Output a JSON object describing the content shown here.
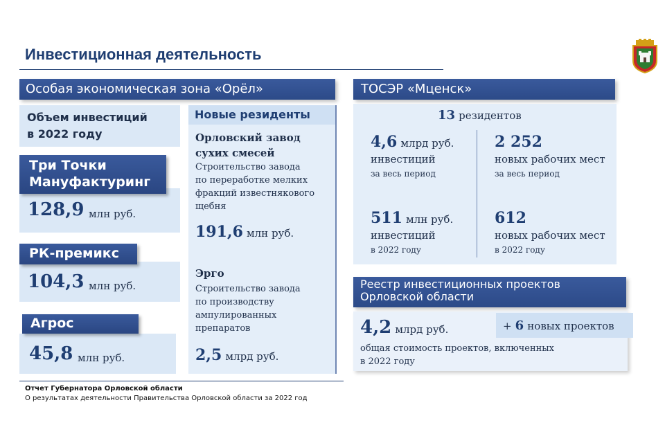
{
  "header": {
    "title": "Инвестиционная деятельность"
  },
  "sez": {
    "title": "Особая экономическая зона «Орёл»",
    "volume_label_1": "Объем инвестиций",
    "volume_label_2": "в 2022 году",
    "companies": [
      {
        "name_1": "Три Точки",
        "name_2": "Мануфактуринг",
        "value": "128,9",
        "unit": "млн руб."
      },
      {
        "name_1": "РК-премикс",
        "value": "104,3",
        "unit": "млн руб."
      },
      {
        "name_1": "Агрос",
        "value": "45,8",
        "unit": "млн руб."
      }
    ],
    "new_residents": {
      "title": "Новые резиденты",
      "items": [
        {
          "name_1": "Орловский завод",
          "name_2": "сухих смесей",
          "desc_1": "Строительство завода",
          "desc_2": "по переработке мелких",
          "desc_3": "фракций известнякового",
          "desc_4": "щебня",
          "value": "191,6",
          "unit": "млн руб."
        },
        {
          "name_1": "Эрго",
          "desc_1": "Строительство завода",
          "desc_2": "по производству",
          "desc_3": "ампулированных",
          "desc_4": "препаратов",
          "value": "2,5",
          "unit": "млрд руб."
        }
      ]
    }
  },
  "tosar": {
    "title": "ТОСЭР «Мценск»",
    "residents_count": "13",
    "residents_label": "резидентов",
    "stats": [
      {
        "value": "4,6",
        "unit": "млрд руб.",
        "label": "инвестиций",
        "period": "за весь период"
      },
      {
        "value": "2 252",
        "label": "новых рабочих мест",
        "period": "за весь период"
      },
      {
        "value": "511",
        "unit": "млн руб.",
        "label": "инвестиций",
        "period": "в 2022 году"
      },
      {
        "value": "612",
        "label": "новых рабочих мест",
        "period": "в 2022 году"
      }
    ]
  },
  "registry": {
    "title_1": "Реестр инвестиционных  проектов",
    "title_2": "Орловской области",
    "value": "4,2",
    "unit": "млрд руб.",
    "desc_1": "общая стоимость проектов, включенных",
    "desc_2": "в 2022 году",
    "new_prefix": "+",
    "new_count": "6",
    "new_label": "новых проектов"
  },
  "footer": {
    "line_1": "Отчет Губернатора  Орловской области",
    "line_2": "О результатах деятельности Правительства Орловской  области за 2022 год"
  },
  "colors": {
    "primary": "#2c4a88",
    "light_panel": "#e4eef9",
    "text": "#1f2f4a"
  },
  "icons": {
    "emblem": "orel-coat-of-arms-icon"
  }
}
